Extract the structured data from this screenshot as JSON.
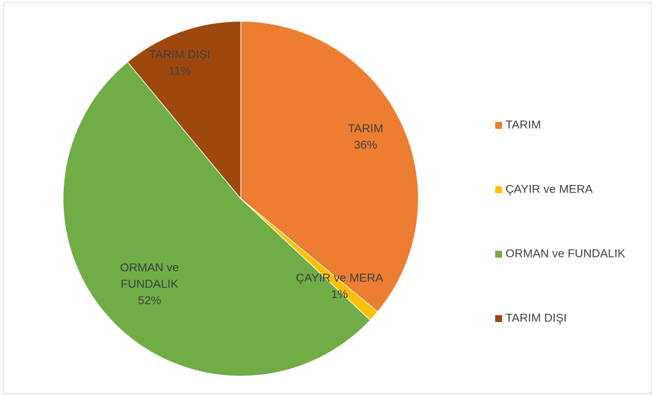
{
  "chart_data": {
    "type": "pie",
    "categories": [
      "TARIM",
      "ÇAYIR ve MERA",
      "ORMAN ve FUNDALIK",
      "TARIM DIŞI"
    ],
    "values": [
      36,
      1,
      52,
      11
    ],
    "value_labels": [
      "36%",
      "1%",
      "52%",
      "11%"
    ],
    "colors": [
      "#ED7D31",
      "#FFC000",
      "#70AD47",
      "#9E480E"
    ],
    "legend": "right"
  }
}
